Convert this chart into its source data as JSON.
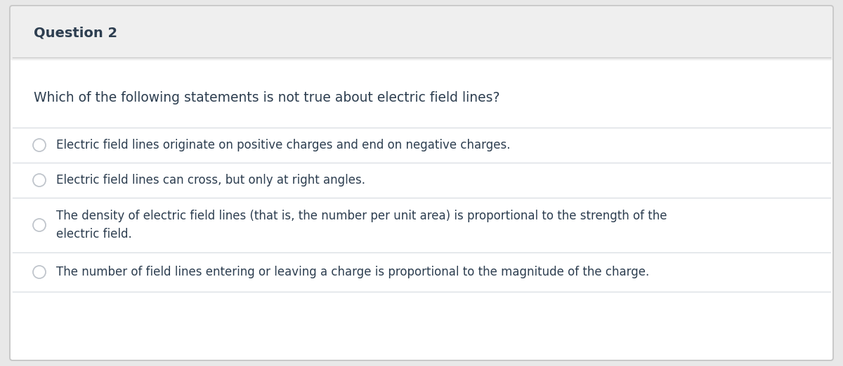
{
  "title": "Question 2",
  "title_fontsize": 14,
  "title_color": "#2d3e50",
  "header_bg_color": "#efefef",
  "body_bg_color": "#ffffff",
  "outer_border_color": "#c8c8c8",
  "header_border_color": "#cccccc",
  "question_text": "Which of the following statements is not true about electric field lines?",
  "question_fontsize": 13.5,
  "question_color": "#2d3e50",
  "options": [
    "Electric field lines originate on positive charges and end on negative charges.",
    "Electric field lines can cross, but only at right angles.",
    "The density of electric field lines (that is, the number per unit area) is proportional to the strength of the\nelectric field.",
    "The number of field lines entering or leaving a charge is proportional to the magnitude of the charge."
  ],
  "option_fontsize": 12,
  "option_color": "#2d3e50",
  "radio_edge_color": "#c0c5cc",
  "divider_color": "#d8dde2",
  "figure_width": 12.0,
  "figure_height": 5.22,
  "dpi": 100
}
